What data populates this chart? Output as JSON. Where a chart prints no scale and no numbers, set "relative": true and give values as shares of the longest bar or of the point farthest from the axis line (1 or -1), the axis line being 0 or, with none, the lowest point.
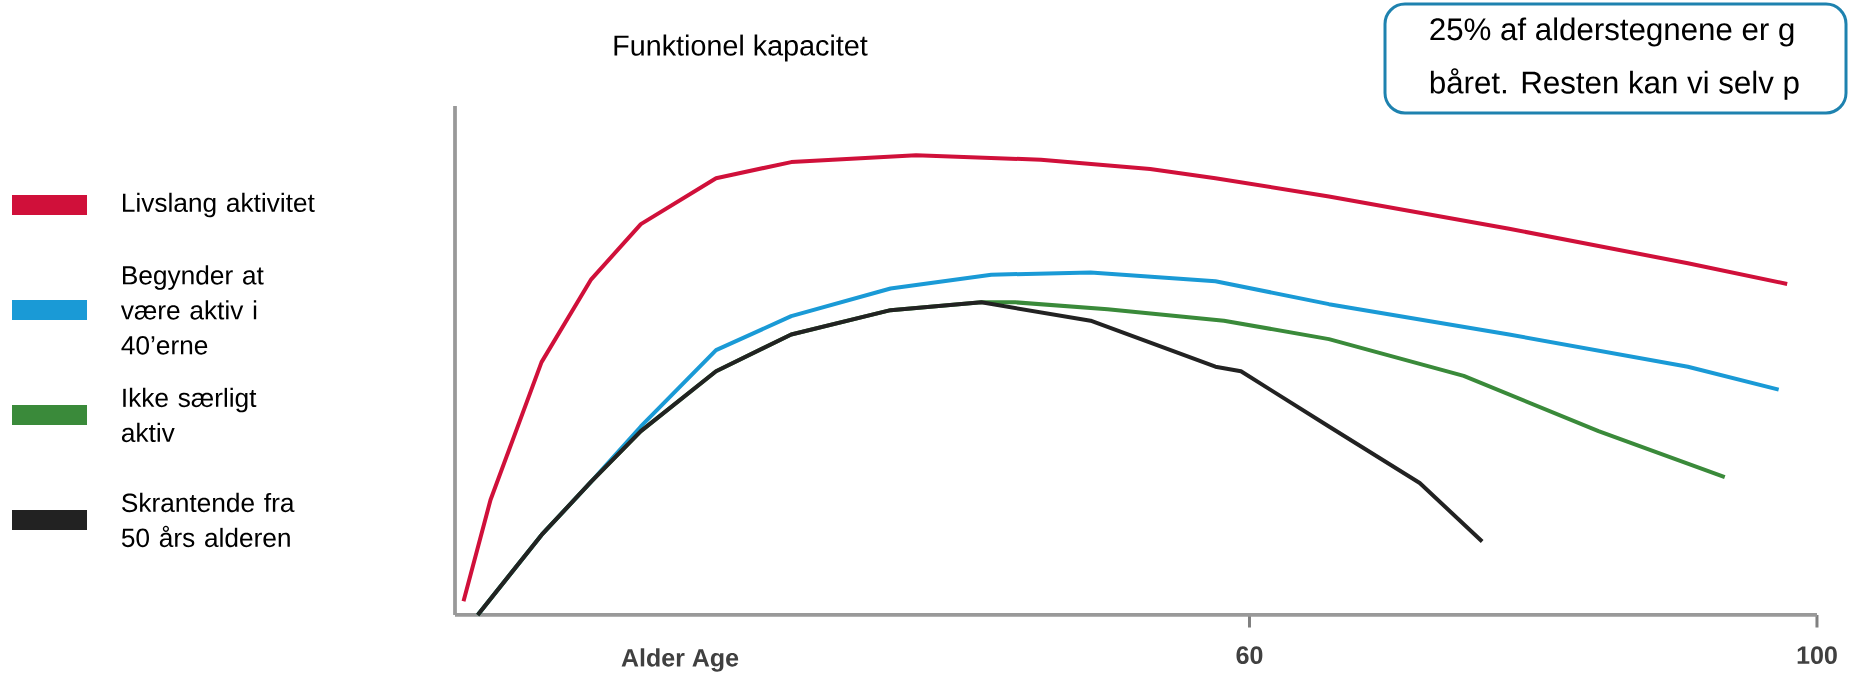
{
  "chart_data": {
    "type": "line",
    "relative": true,
    "ylabel": "Funktionel kapacitet",
    "xlabel": "Alder  Age",
    "xlim": [
      4,
      100
    ],
    "xticks": [
      60,
      100
    ],
    "legend": "left",
    "annotations": [
      "25% af alderstegnene er g",
      "båret. Resten kan vi selv p"
    ],
    "series": [
      {
        "name": "Livslang aktivitet",
        "color": "#d0103a",
        "x": [
          4.6,
          6.5,
          10.1,
          13.6,
          17.1,
          22.4,
          27.7,
          36.5,
          45.3,
          53,
          57.6,
          65.6,
          78.3,
          90.9,
          97.9
        ],
        "values": [
          0.03,
          0.25,
          0.55,
          0.73,
          0.85,
          0.95,
          0.985,
          1.0,
          0.99,
          0.97,
          0.95,
          0.91,
          0.84,
          0.765,
          0.72
        ]
      },
      {
        "name": "Begynder at være aktiv i 40’erne",
        "color": "#1a9ad6",
        "x": [
          5.6,
          10.1,
          13.6,
          17.1,
          22.4,
          27.7,
          34.7,
          41.8,
          48.8,
          57.6,
          65.6,
          78.3,
          90.9,
          97.3
        ],
        "values": [
          0,
          0.174,
          0.29,
          0.41,
          0.576,
          0.65,
          0.71,
          0.74,
          0.745,
          0.726,
          0.676,
          0.61,
          0.54,
          0.49
        ]
      },
      {
        "name": "Ikke særligt aktiv",
        "color": "#3a8a3a",
        "x": [
          5.6,
          10.1,
          13.6,
          17.1,
          22.4,
          27.7,
          34.7,
          41.1,
          43.5,
          50,
          58.2,
          65.6,
          75.1,
          84.6,
          93.5
        ],
        "values": [
          0,
          0.174,
          0.29,
          0.4,
          0.53,
          0.61,
          0.663,
          0.68,
          0.68,
          0.665,
          0.64,
          0.6,
          0.52,
          0.4,
          0.3
        ]
      },
      {
        "name": "Skrantende fra 50 års alderen",
        "color": "#222222",
        "x": [
          5.6,
          10.1,
          13.6,
          17.1,
          22.4,
          27.7,
          34.7,
          41.1,
          48.8,
          57.6,
          59.4,
          65.6,
          72,
          76.4
        ],
        "values": [
          0,
          0.174,
          0.29,
          0.4,
          0.53,
          0.61,
          0.663,
          0.68,
          0.64,
          0.54,
          0.53,
          0.41,
          0.287,
          0.16
        ]
      }
    ]
  }
}
